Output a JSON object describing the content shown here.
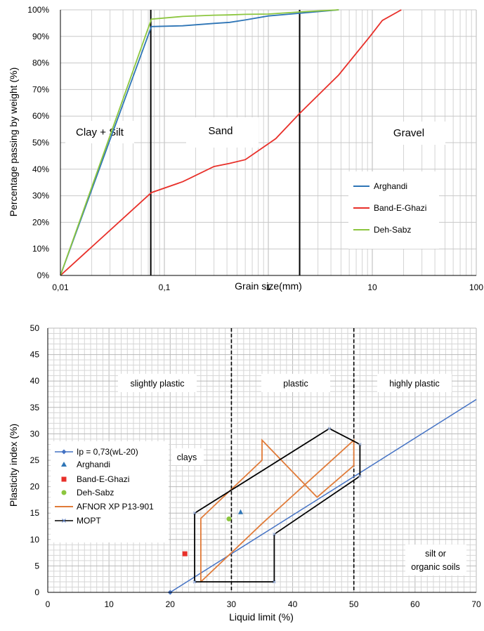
{
  "chart_data": [
    {
      "type": "line",
      "xlabel": "Grain size(mm)",
      "ylabel": "Percentage passing  by weight (%)",
      "xscale": "log",
      "xlim": [
        0.01,
        100
      ],
      "ylim": [
        0,
        100
      ],
      "x_tick_labels": [
        "0,01",
        "0,1",
        "1",
        "10",
        "100"
      ],
      "y_tick_labels": [
        "0%",
        "10%",
        "20%",
        "30%",
        "40%",
        "50%",
        "60%",
        "70%",
        "80%",
        "90%",
        "100%"
      ],
      "grid": true,
      "legend_position": "right-middle",
      "colors": {
        "Arghandi": "#2E75B6",
        "Band-E-Ghazi": "#E8302A",
        "Deh-Sabz": "#8CC63F",
        "dividers": "#000000"
      },
      "regions": [
        {
          "label": "Clay + Silt"
        },
        {
          "label": "Sand"
        },
        {
          "label": "Gravel"
        }
      ],
      "vertical_lines": [
        0.074,
        2
      ],
      "series": [
        {
          "name": "Arghandi",
          "x": [
            0.01,
            0.075,
            0.15,
            0.3,
            0.425,
            0.6,
            1,
            2,
            4.75
          ],
          "y": [
            0,
            93.7,
            94,
            94.9,
            95.3,
            96.2,
            97.7,
            98.7,
            100
          ]
        },
        {
          "name": "Band-E-Ghazi",
          "x": [
            0.01,
            0.075,
            0.15,
            0.3,
            0.425,
            0.6,
            1.18,
            2,
            4.75,
            9.5,
            12.5,
            19
          ],
          "y": [
            0,
            31.2,
            35.3,
            41,
            42.2,
            43.6,
            51.5,
            61,
            75.5,
            90,
            96,
            100
          ]
        },
        {
          "name": "Deh-Sabz",
          "x": [
            0.01,
            0.075,
            0.15,
            0.3,
            0.425,
            0.6,
            1,
            2,
            4.75
          ],
          "y": [
            0,
            96.5,
            97.5,
            98,
            98.1,
            98.3,
            98.4,
            99.2,
            100
          ]
        }
      ]
    },
    {
      "type": "scatter",
      "xlabel": "Liquid limit (%)",
      "ylabel": "Plasticity index (%)",
      "xlim": [
        0,
        70
      ],
      "ylim": [
        0,
        50
      ],
      "x_tick_labels": [
        "0",
        "10",
        "20",
        "30",
        "40",
        "50",
        "60",
        "70"
      ],
      "y_tick_labels": [
        "0",
        "5",
        "10",
        "15",
        "20",
        "25",
        "30",
        "35",
        "40",
        "45",
        "50"
      ],
      "grid": true,
      "legend_position": "left-middle",
      "colors": {
        "Ip": "#4472C4",
        "Arghandi": "#2E75B6",
        "Band-E-Ghazi": "#E8302A",
        "Deh-Sabz": "#8CC63F",
        "AFNOR": "#E07B39",
        "MOPT": "#000000"
      },
      "regions": [
        {
          "label": "slightly plastic"
        },
        {
          "label": "plastic"
        },
        {
          "label": "highly plastic"
        },
        {
          "label": "clays"
        },
        {
          "label": "silt or organic soils",
          "lines": [
            "silt or",
            "organic soils"
          ]
        }
      ],
      "vertical_lines": [
        30,
        50
      ],
      "series": [
        {
          "name": "Ip = 0,73(wL-20)",
          "type": "line",
          "x": [
            20,
            70
          ],
          "y": [
            0,
            36.5
          ]
        },
        {
          "name": "Arghandi",
          "type": "scatter",
          "marker": "triangle",
          "x": [
            31.5
          ],
          "y": [
            15.2
          ]
        },
        {
          "name": "Band-E-Ghazi",
          "type": "scatter",
          "marker": "square",
          "x": [
            22.4
          ],
          "y": [
            7.3
          ]
        },
        {
          "name": "Deh-Sabz",
          "type": "scatter",
          "marker": "circle",
          "x": [
            29.6
          ],
          "y": [
            13.9
          ]
        },
        {
          "name": "AFNOR XP P13-901",
          "type": "line",
          "x": [
            25,
            25,
            35,
            35,
            44,
            50,
            50,
            35,
            25
          ],
          "y": [
            2,
            14,
            25,
            28.8,
            18,
            24,
            28.8,
            13,
            2
          ]
        },
        {
          "name": "MOPT",
          "type": "line",
          "marker": "x",
          "x": [
            24,
            24,
            46,
            51,
            51,
            37,
            37,
            24
          ],
          "y": [
            2,
            15,
            31,
            28,
            22,
            11,
            2,
            2
          ]
        }
      ]
    }
  ]
}
